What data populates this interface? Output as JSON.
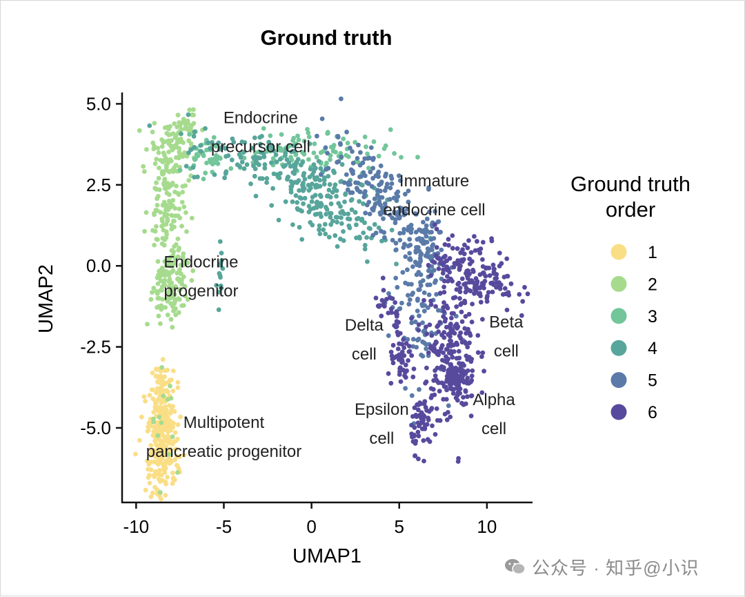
{
  "chart_data": {
    "type": "scatter",
    "title": "Ground truth",
    "xlabel": "UMAP1",
    "ylabel": "UMAP2",
    "xlim": [
      -10.8,
      12.6
    ],
    "ylim": [
      -7.3,
      5.35
    ],
    "xticks": [
      -10,
      -5,
      0,
      5,
      10
    ],
    "yticks": [
      5.0,
      2.5,
      0.0,
      -2.5,
      -5.0
    ],
    "xtick_labels": [
      "-10",
      "-5",
      "0",
      "5",
      "10"
    ],
    "ytick_labels": [
      "5.0",
      "2.5",
      "0.0",
      "-2.5",
      "-5.0"
    ],
    "grid": false,
    "legend_title": "Ground truth order",
    "legend_placement": "right",
    "series": [
      {
        "name": "1",
        "color": "#FADE86"
      },
      {
        "name": "2",
        "color": "#A6DB8E"
      },
      {
        "name": "3",
        "color": "#72C69A"
      },
      {
        "name": "4",
        "color": "#57A59B"
      },
      {
        "name": "5",
        "color": "#5A7AA8"
      },
      {
        "name": "6",
        "color": "#574A9D"
      }
    ],
    "clusters": [
      {
        "series": 0,
        "n": 230,
        "center": [
          -8.5,
          -5.5
        ],
        "spread": [
          0.45,
          0.85
        ],
        "rotation": 0
      },
      {
        "series": 0,
        "n": 70,
        "center": [
          -8.6,
          -4.0
        ],
        "spread": [
          0.35,
          0.55
        ],
        "rotation": 0
      },
      {
        "series": 1,
        "n": 14,
        "center": [
          -8.3,
          -4.8
        ],
        "spread": [
          0.5,
          0.8
        ],
        "rotation": 0
      },
      {
        "series": 1,
        "n": 130,
        "center": [
          -8.0,
          -0.6
        ],
        "spread": [
          0.6,
          0.55
        ],
        "rotation": 0
      },
      {
        "series": 1,
        "n": 110,
        "center": [
          -8.3,
          1.8
        ],
        "spread": [
          0.5,
          0.8
        ],
        "rotation": 0
      },
      {
        "series": 1,
        "n": 90,
        "center": [
          -8.0,
          3.6
        ],
        "spread": [
          0.6,
          0.45
        ],
        "rotation": 0
      },
      {
        "series": 1,
        "n": 25,
        "center": [
          -7.2,
          4.4
        ],
        "spread": [
          0.35,
          0.2
        ],
        "rotation": 0
      },
      {
        "series": 2,
        "n": 100,
        "center": [
          -0.5,
          3.5
        ],
        "spread": [
          2.5,
          0.35
        ],
        "rotation": 0
      },
      {
        "series": 2,
        "n": 35,
        "center": [
          -6.0,
          3.4
        ],
        "spread": [
          0.45,
          0.3
        ],
        "rotation": 0
      },
      {
        "series": 3,
        "n": 170,
        "center": [
          -1.5,
          3.0
        ],
        "spread": [
          3.0,
          0.45
        ],
        "rotation": -8
      },
      {
        "series": 3,
        "n": 130,
        "center": [
          0.8,
          1.8
        ],
        "spread": [
          1.6,
          0.5
        ],
        "rotation": -18
      },
      {
        "series": 3,
        "n": 14,
        "center": [
          -5.2,
          0.0
        ],
        "spread": [
          0.08,
          0.45
        ],
        "rotation": 0
      },
      {
        "series": 4,
        "n": 160,
        "center": [
          3.8,
          2.2
        ],
        "spread": [
          1.6,
          0.5
        ],
        "rotation": -25
      },
      {
        "series": 4,
        "n": 120,
        "center": [
          6.0,
          -1.0
        ],
        "spread": [
          0.8,
          1.3
        ],
        "rotation": 0
      },
      {
        "series": 4,
        "n": 50,
        "center": [
          6.5,
          0.8
        ],
        "spread": [
          0.5,
          0.45
        ],
        "rotation": 0
      },
      {
        "series": 5,
        "n": 170,
        "center": [
          9.3,
          -0.2
        ],
        "spread": [
          1.2,
          0.5
        ],
        "rotation": -10
      },
      {
        "series": 5,
        "n": 220,
        "center": [
          7.9,
          -2.6
        ],
        "spread": [
          0.75,
          1.1
        ],
        "rotation": 0
      },
      {
        "series": 5,
        "n": 60,
        "center": [
          8.3,
          -3.6
        ],
        "spread": [
          0.35,
          0.3
        ],
        "rotation": 0
      },
      {
        "series": 5,
        "n": 55,
        "center": [
          6.3,
          -4.8
        ],
        "spread": [
          0.3,
          0.45
        ],
        "rotation": 0
      },
      {
        "series": 5,
        "n": 45,
        "center": [
          5.2,
          -3.0
        ],
        "spread": [
          0.4,
          0.35
        ],
        "rotation": 0
      },
      {
        "series": 5,
        "n": 18,
        "center": [
          4.2,
          -1.2
        ],
        "spread": [
          0.3,
          0.25
        ],
        "rotation": 0
      },
      {
        "series": 5,
        "n": 12,
        "center": [
          4.8,
          -1.65
        ],
        "spread": [
          0.1,
          0.2
        ],
        "rotation": 0
      }
    ],
    "annotations": [
      {
        "lines": [
          "Endocrine",
          "precursor cell"
        ],
        "x": -2.9,
        "y": 4.4
      },
      {
        "lines": [
          "Immature",
          "endocrine cell"
        ],
        "x": 7.0,
        "y": 2.45
      },
      {
        "lines": [
          "Endocrine",
          "progenitor"
        ],
        "x": -6.3,
        "y": -0.05
      },
      {
        "lines": [
          "Delta",
          "cell"
        ],
        "x": 3.0,
        "y": -2.0
      },
      {
        "lines": [
          "Beta",
          "cell"
        ],
        "x": 11.1,
        "y": -1.9
      },
      {
        "lines": [
          "Multipotent",
          "pancreatic progenitor"
        ],
        "x": -5.0,
        "y": -5.0
      },
      {
        "lines": [
          "Epsilon",
          "cell"
        ],
        "x": 4.0,
        "y": -4.6
      },
      {
        "lines": [
          "Alpha",
          "cell"
        ],
        "x": 10.4,
        "y": -4.3
      }
    ]
  },
  "watermark": {
    "icon": "wechat-icon",
    "text": "公众号 · 知乎@小识"
  }
}
